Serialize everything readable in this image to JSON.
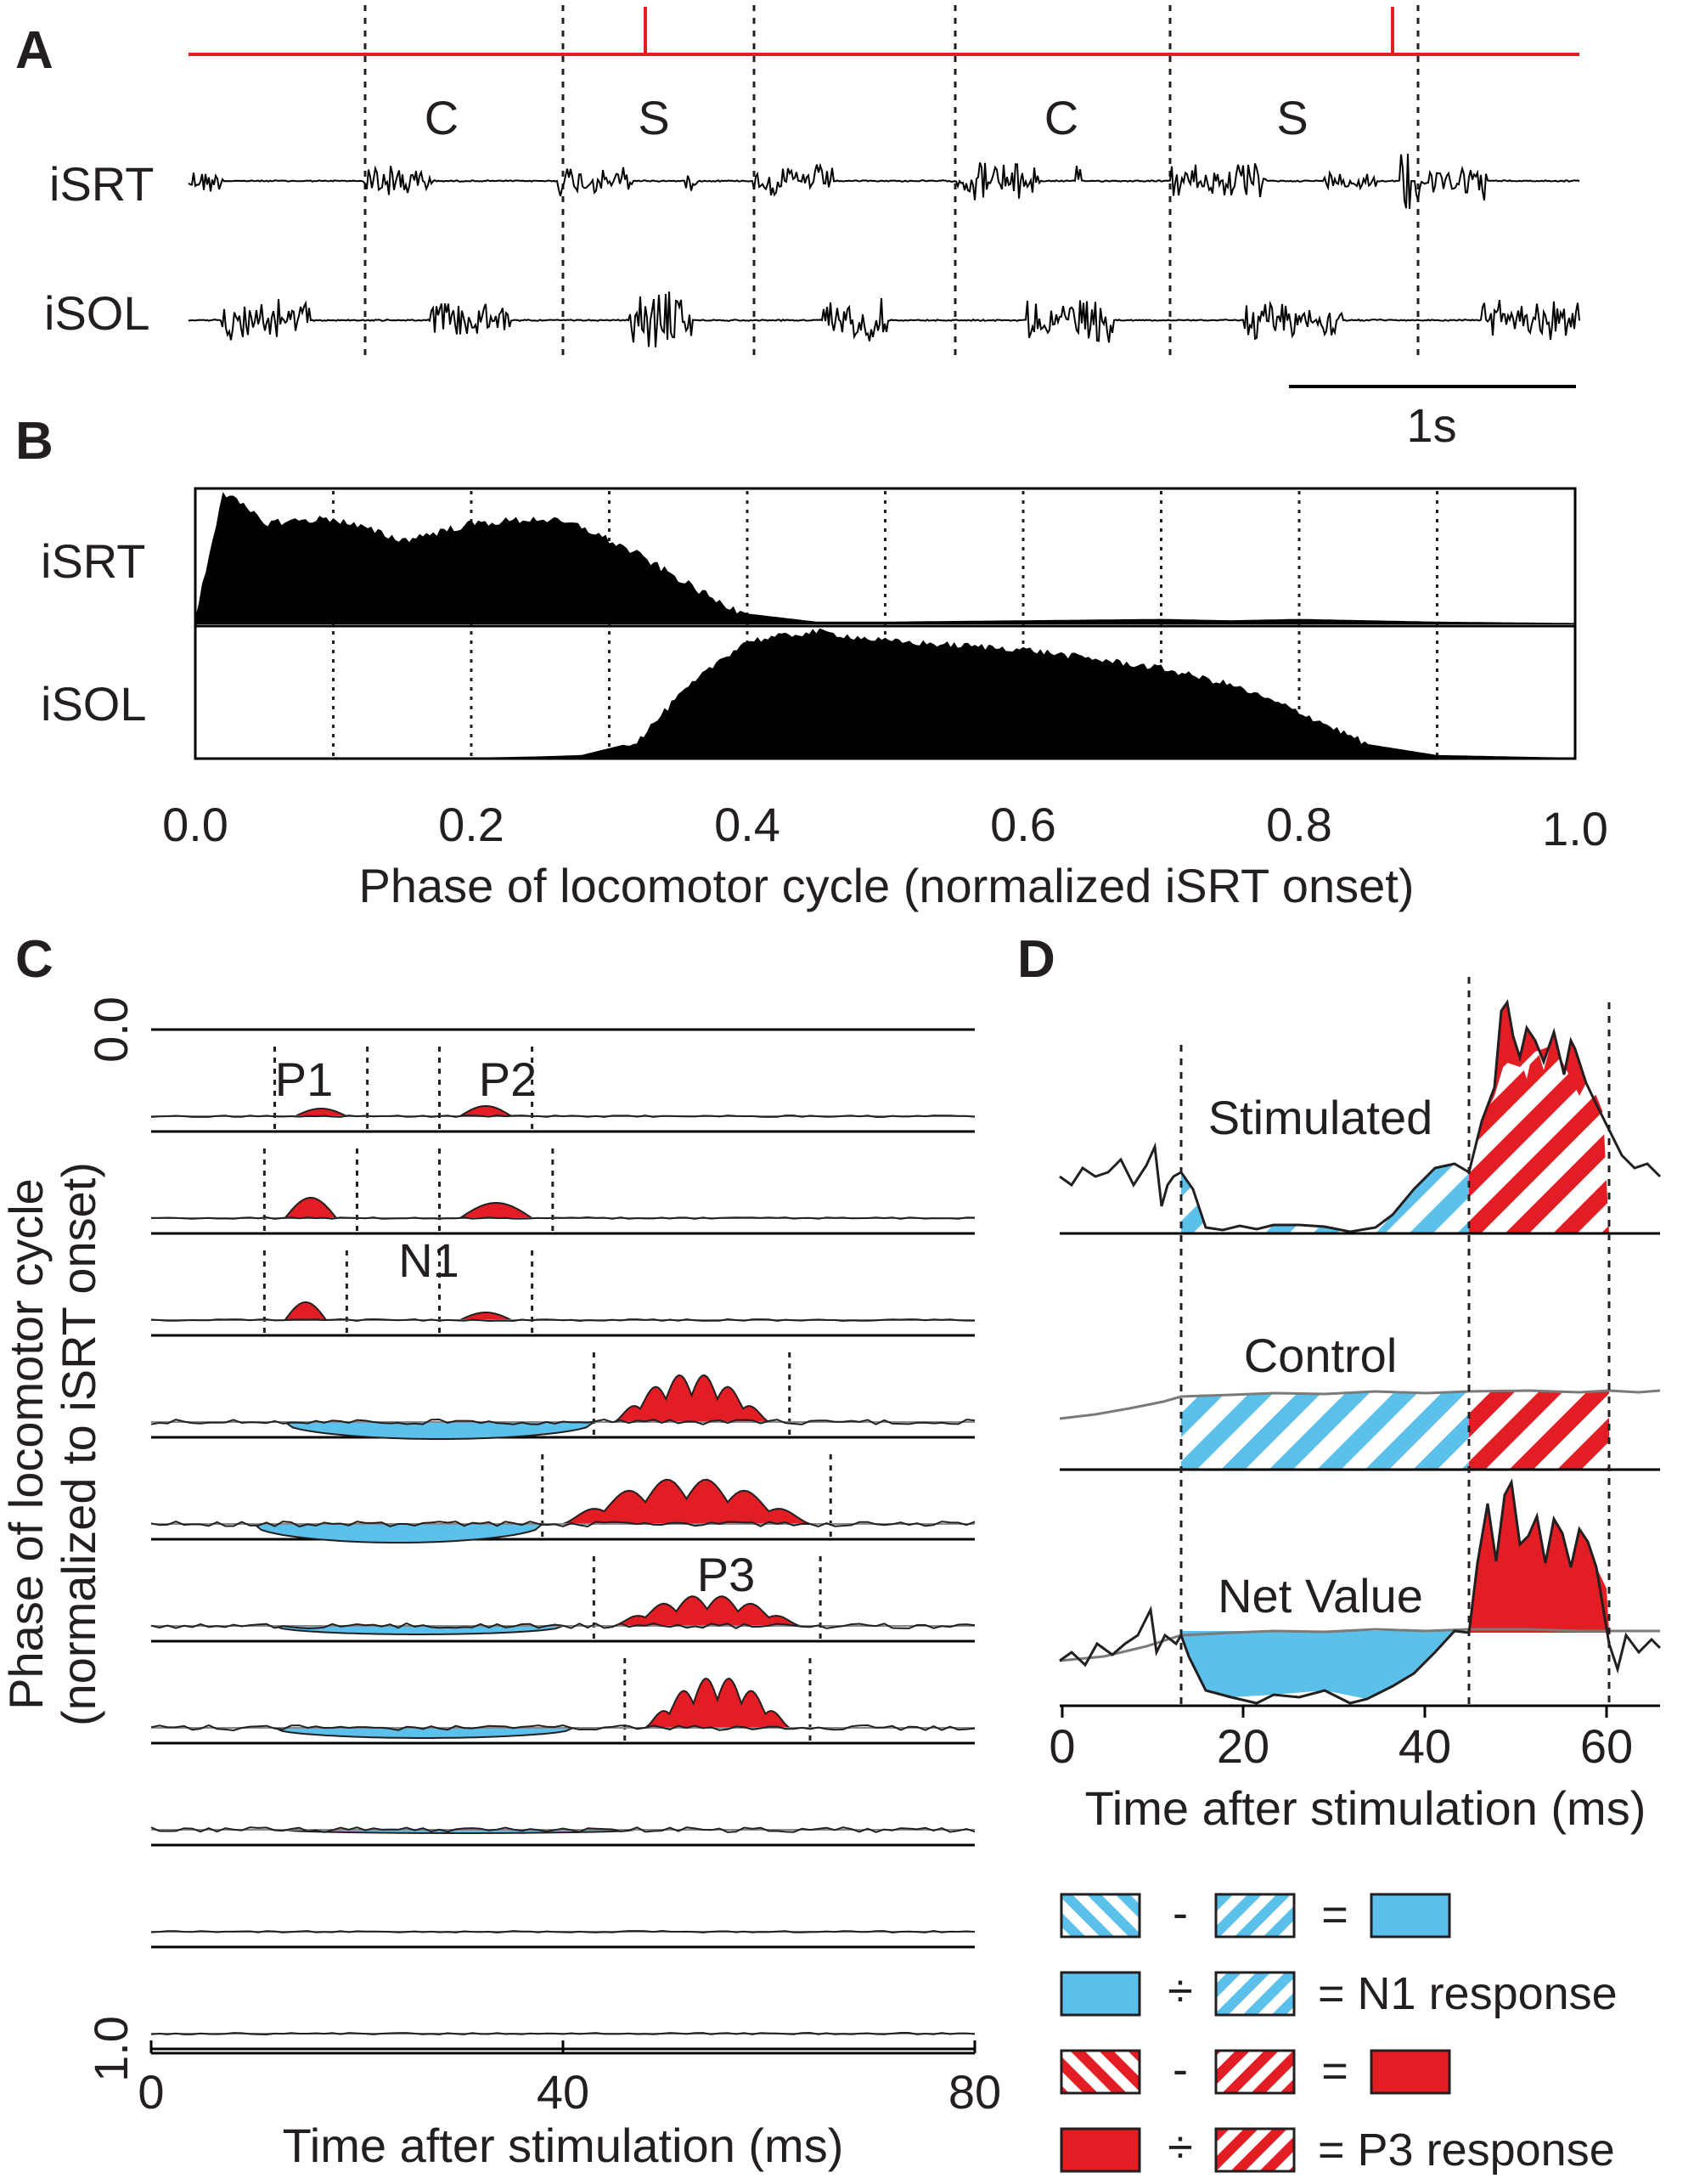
{
  "colors": {
    "red": "#e21d24",
    "blue": "#5bc1ea",
    "black": "#000000",
    "grey": "#8a8a8a"
  },
  "panels": {
    "a": {
      "label": "A",
      "traces": [
        "iSRT",
        "iSOL"
      ],
      "phase_labels": [
        "C",
        "S",
        "C",
        "S"
      ],
      "scalebar": "1s"
    },
    "b": {
      "label": "B",
      "traces": [
        "iSRT",
        "iSOL"
      ],
      "xlabel": "Phase of locomotor cycle (normalized iSRT onset)",
      "xticks": [
        "0.0",
        "0.2",
        "0.4",
        "0.6",
        "0.8",
        "1.0"
      ]
    },
    "c": {
      "label": "C",
      "ylabel_line1": "Phase of locomotor cycle",
      "ylabel_line2": "(normalized to iSRT onset)",
      "ytick_top": "0.0",
      "ytick_bottom": "1.0",
      "xticks": [
        "0",
        "40",
        "80"
      ],
      "xlabel": "Time after stimulation (ms)",
      "peak_labels": [
        "P1",
        "P2",
        "N1",
        "P3"
      ]
    },
    "d": {
      "label": "D",
      "rows": [
        "Stimulated",
        "Control",
        "Net Value"
      ],
      "xticks": [
        "0",
        "20",
        "40",
        "60"
      ],
      "xlabel": "Time after stimulation (ms)"
    }
  },
  "legend": {
    "minus": "-",
    "equals": "=",
    "divide": "÷",
    "n1_text": "= N1 response",
    "p3_text": "= P3 response"
  },
  "chart_data": [
    {
      "type": "line",
      "title": "A",
      "series": [
        {
          "name": "iSRT"
        },
        {
          "name": "iSOL"
        }
      ],
      "annotations": [
        "C",
        "S",
        "C",
        "S"
      ],
      "scalebar": "1s"
    },
    {
      "type": "area",
      "title": "B",
      "xlabel": "Phase of locomotor cycle (normalized iSRT onset)",
      "xlim": [
        0,
        1
      ],
      "x": [
        0.0,
        0.02,
        0.05,
        0.1,
        0.15,
        0.2,
        0.25,
        0.28,
        0.32,
        0.35,
        0.38,
        0.4,
        0.45,
        0.5,
        0.6,
        0.7,
        0.75,
        0.8,
        0.85,
        0.9,
        1.0
      ],
      "series": [
        {
          "name": "iSRT",
          "values": [
            0.05,
            0.98,
            0.75,
            0.78,
            0.62,
            0.74,
            0.78,
            0.72,
            0.52,
            0.34,
            0.16,
            0.08,
            0.02,
            0.02,
            0.03,
            0.04,
            0.03,
            0.04,
            0.03,
            0.02,
            0.01
          ]
        },
        {
          "name": "iSOL",
          "values": [
            0.0,
            0.0,
            0.0,
            0.0,
            0.0,
            0.0,
            0.01,
            0.02,
            0.12,
            0.45,
            0.72,
            0.86,
            0.93,
            0.86,
            0.8,
            0.66,
            0.54,
            0.34,
            0.1,
            0.02,
            0.0
          ]
        }
      ]
    },
    {
      "type": "line",
      "title": "C",
      "xlabel": "Time after stimulation (ms)",
      "xlim": [
        0,
        80
      ],
      "ylabel": "Phase of locomotor cycle (normalized to iSRT onset)",
      "ylim": [
        0.0,
        1.0
      ],
      "traces": [
        {
          "phase": 0.0,
          "peaks": []
        },
        {
          "phase": 0.1,
          "peaks": [
            {
              "name": "P1",
              "start": 14,
              "end": 19,
              "height": 0.15
            },
            {
              "name": "P2",
              "start": 30,
              "end": 35,
              "height": 0.2
            }
          ]
        },
        {
          "phase": 0.2,
          "peaks": [
            {
              "name": "P1",
              "start": 13,
              "end": 18,
              "height": 0.4
            },
            {
              "name": "P2",
              "start": 30,
              "end": 37,
              "height": 0.3
            }
          ]
        },
        {
          "phase": 0.3,
          "peaks": [
            {
              "name": "P1",
              "start": 13,
              "end": 17,
              "height": 0.35
            },
            {
              "name": "P2",
              "start": 30,
              "end": 35,
              "height": 0.15
            }
          ]
        },
        {
          "phase": 0.4,
          "n1": {
            "start": 13,
            "end": 43,
            "depth": 0.5
          },
          "p3": {
            "start": 45,
            "end": 60,
            "height": 0.95
          }
        },
        {
          "phase": 0.5,
          "n1": {
            "start": 10,
            "end": 38,
            "depth": 0.55
          },
          "p3": {
            "start": 40,
            "end": 64,
            "height": 0.9
          }
        },
        {
          "phase": 0.6,
          "n1": {
            "start": 12,
            "end": 40,
            "depth": 0.25
          },
          "p3": {
            "start": 45,
            "end": 63,
            "height": 0.6
          }
        },
        {
          "phase": 0.7,
          "n1": {
            "start": 12,
            "end": 41,
            "depth": 0.3
          },
          "p3": {
            "start": 48,
            "end": 62,
            "height": 1.0
          }
        },
        {
          "phase": 0.8,
          "n1": {
            "start": 13,
            "end": 47,
            "depth": 0.1
          }
        },
        {
          "phase": 0.9,
          "peaks": []
        },
        {
          "phase": 1.0,
          "peaks": []
        }
      ]
    },
    {
      "type": "area",
      "title": "D",
      "xlabel": "Time after stimulation (ms)",
      "xlim": [
        0,
        66
      ],
      "xticks": [
        0,
        20,
        40,
        60
      ],
      "windows": {
        "n1": [
          14,
          45
        ],
        "p3": [
          45,
          60
        ]
      },
      "series": [
        {
          "name": "Stimulated",
          "n1_level": 0.05,
          "p3_peak": 1.0
        },
        {
          "name": "Control",
          "level": 0.35
        },
        {
          "name": "Net Value",
          "n1_depth": -0.35,
          "p3_peak": 0.95
        }
      ]
    }
  ]
}
